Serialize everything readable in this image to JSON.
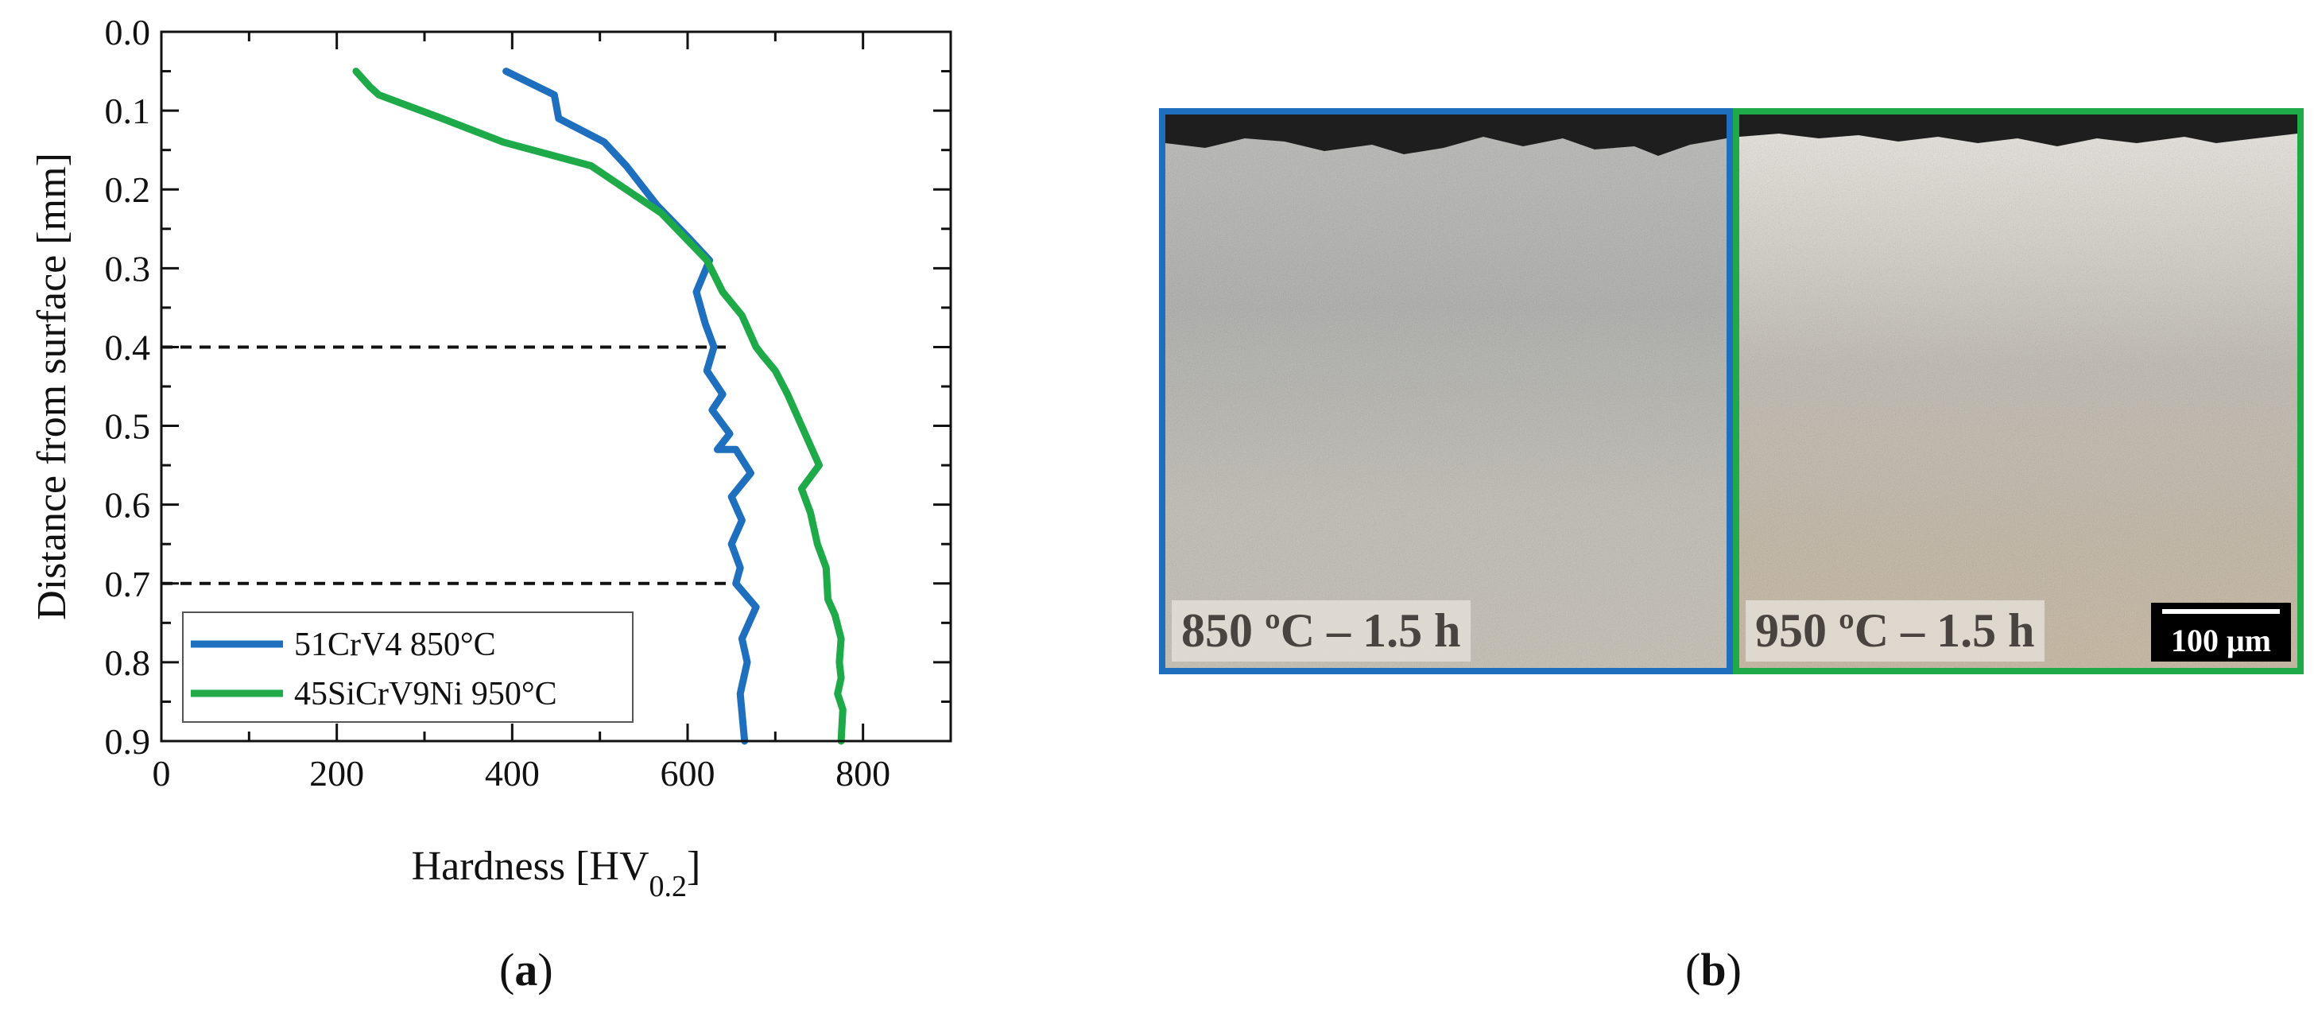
{
  "chart_data": {
    "type": "line",
    "ylabel": "Distance from surface [mm]",
    "xlabel_main": "Hardness [HV",
    "xlabel_sub": "0.2",
    "xlabel_end": "]",
    "xlim": [
      0,
      900
    ],
    "ylim": [
      0.9,
      0.0
    ],
    "y_inverted": true,
    "x_ticks": [
      "0",
      "200",
      "400",
      "600",
      "800"
    ],
    "x_tick_values": [
      0,
      200,
      400,
      600,
      800
    ],
    "y_ticks": [
      "0.0",
      "0.1",
      "0.2",
      "0.3",
      "0.4",
      "0.5",
      "0.6",
      "0.7",
      "0.8",
      "0.9"
    ],
    "y_tick_values": [
      0.0,
      0.1,
      0.2,
      0.3,
      0.4,
      0.5,
      0.6,
      0.7,
      0.8,
      0.9
    ],
    "reference_lines_y": [
      0.4,
      0.7
    ],
    "legend_position": "bottom-left",
    "series": [
      {
        "name": "51CrV4 850°C",
        "color": "#1f6fbf",
        "x": [
          393,
          448,
          453,
          505,
          530,
          565,
          600,
          625,
          610,
          620,
          630,
          622,
          640,
          628,
          648,
          634,
          655,
          672,
          650,
          662,
          650,
          660,
          655,
          678,
          662,
          668,
          660,
          665
        ],
        "y": [
          0.05,
          0.08,
          0.11,
          0.14,
          0.17,
          0.22,
          0.26,
          0.29,
          0.33,
          0.37,
          0.4,
          0.43,
          0.46,
          0.48,
          0.51,
          0.53,
          0.53,
          0.56,
          0.59,
          0.62,
          0.65,
          0.68,
          0.7,
          0.73,
          0.77,
          0.8,
          0.84,
          0.9
        ]
      },
      {
        "name": "45SiCrV9Ni 950°C",
        "color": "#1faa4a",
        "x": [
          222,
          238,
          248,
          320,
          390,
          490,
          570,
          622,
          640,
          662,
          678,
          685,
          700,
          714,
          730,
          750,
          730,
          740,
          748,
          758,
          760,
          768,
          775,
          773,
          775,
          771,
          777,
          775
        ],
        "y": [
          0.05,
          0.07,
          0.08,
          0.11,
          0.14,
          0.17,
          0.23,
          0.29,
          0.33,
          0.36,
          0.4,
          0.41,
          0.43,
          0.46,
          0.5,
          0.55,
          0.58,
          0.61,
          0.65,
          0.68,
          0.72,
          0.74,
          0.77,
          0.8,
          0.82,
          0.84,
          0.86,
          0.9
        ]
      }
    ]
  },
  "captions": {
    "a": "a",
    "b": "b"
  },
  "micrographs": [
    {
      "label": "850 ºC – 1.5 h",
      "border_color": "#1f6fbf"
    },
    {
      "label": "950 ºC – 1.5 h",
      "border_color": "#1faa4a"
    }
  ],
  "scale_bar": {
    "label": "100 μm"
  }
}
